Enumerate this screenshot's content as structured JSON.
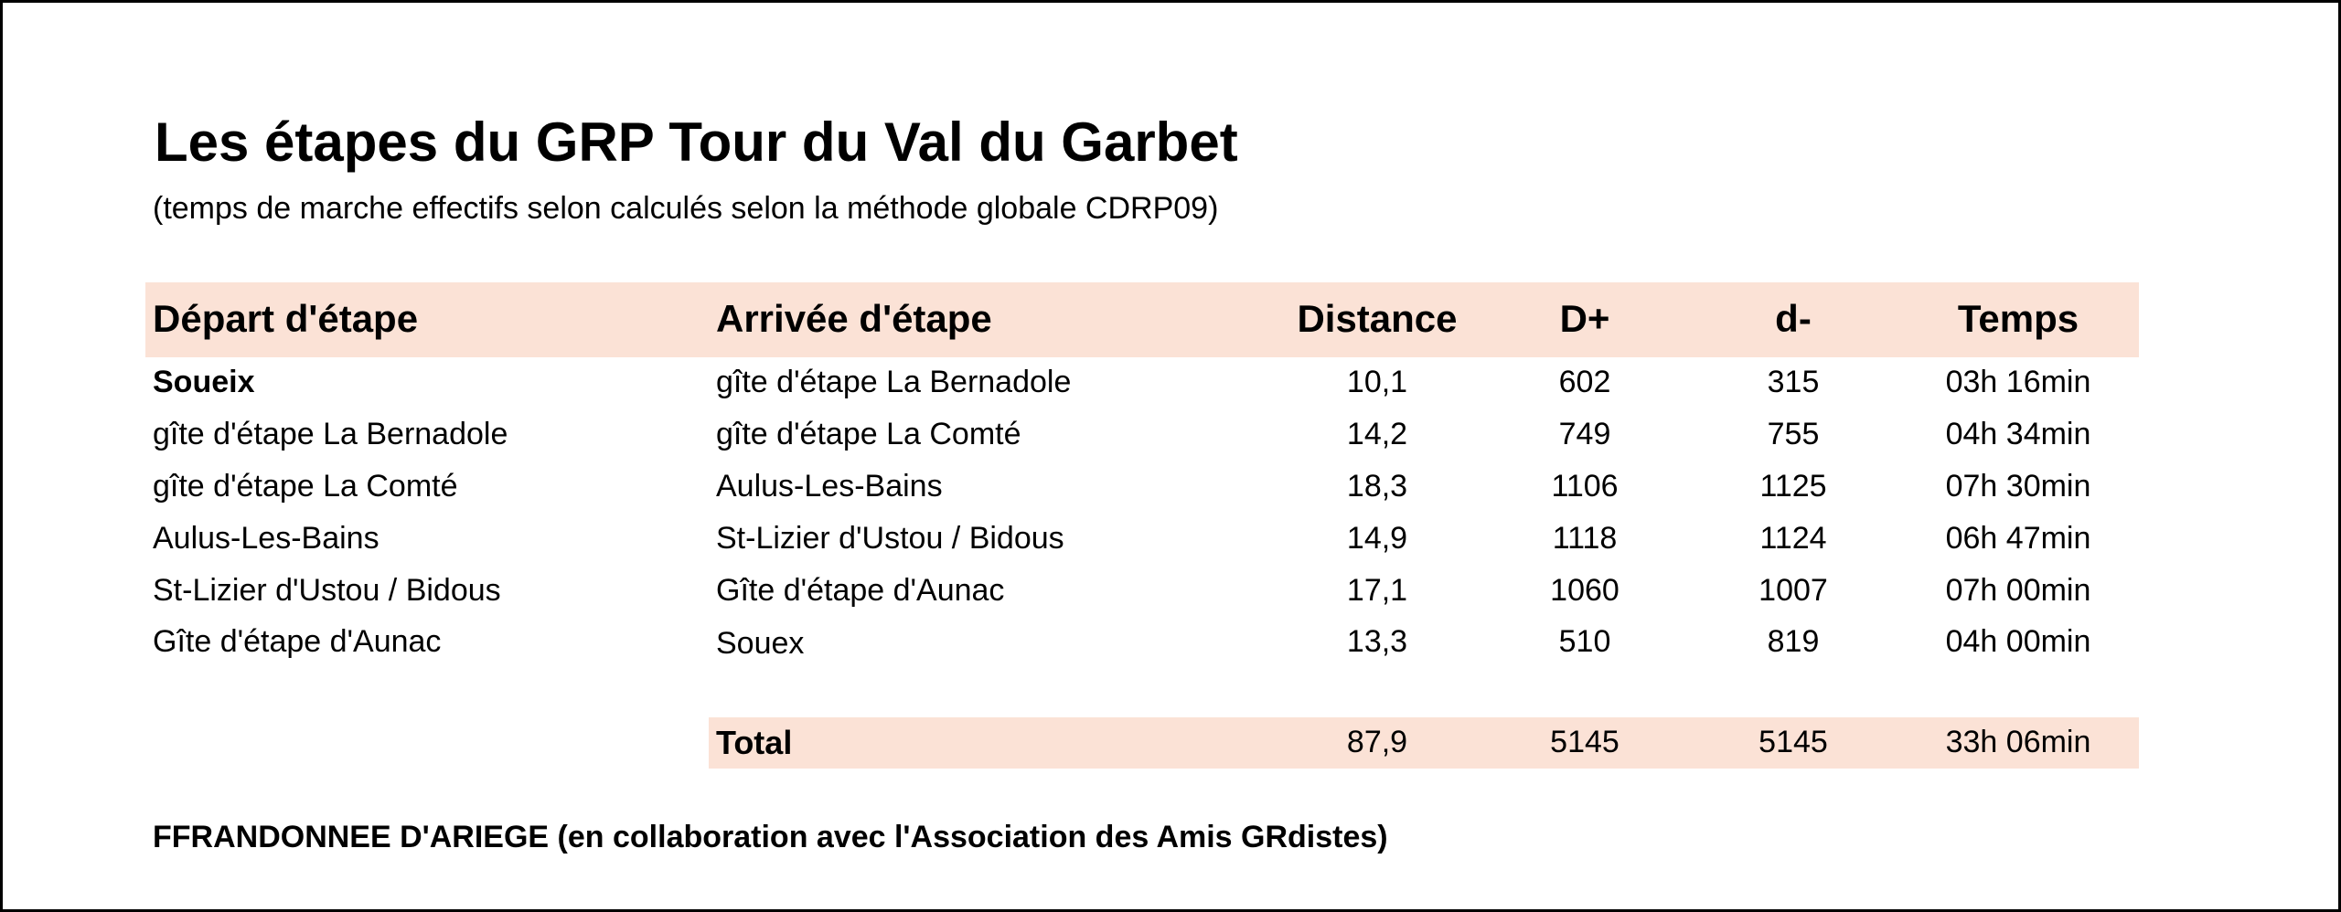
{
  "title": "Les étapes du GRP Tour du Val du Garbet",
  "subtitle": "(temps de marche effectifs selon calculés selon la méthode globale CDRP09)",
  "header": {
    "depart": "Départ d'étape",
    "arrivee": "Arrivée d'étape",
    "distance": "Distance",
    "dplus": "D+",
    "dminus": "d-",
    "temps": "Temps"
  },
  "rows": [
    {
      "depart": "Soueix",
      "arrivee": "gîte d'étape La Bernadole",
      "distance": "10,1",
      "dplus": "602",
      "dminus": "315",
      "temps": "03h 16min"
    },
    {
      "depart": "gîte d'étape La Bernadole",
      "arrivee": "gîte d'étape La Comté",
      "distance": "14,2",
      "dplus": "749",
      "dminus": "755",
      "temps": "04h 34min"
    },
    {
      "depart": "gîte d'étape La Comté",
      "arrivee": "Aulus-Les-Bains",
      "distance": "18,3",
      "dplus": "1106",
      "dminus": "1125",
      "temps": "07h 30min"
    },
    {
      "depart": "Aulus-Les-Bains",
      "arrivee": "St-Lizier d'Ustou / Bidous",
      "distance": "14,9",
      "dplus": "1118",
      "dminus": "1124",
      "temps": "06h 47min"
    },
    {
      "depart": "St-Lizier d'Ustou / Bidous",
      "arrivee": "Gîte d'étape d'Aunac",
      "distance": "17,1",
      "dplus": "1060",
      "dminus": "1007",
      "temps": "07h 00min"
    },
    {
      "depart": "Gîte d'étape d'Aunac",
      "arrivee": "Souex",
      "distance": "13,3",
      "dplus": "510",
      "dminus": "819",
      "temps": "04h 00min"
    }
  ],
  "total": {
    "label": "Total",
    "distance": "87,9",
    "dplus": "5145",
    "dminus": "5145",
    "temps": "33h 06min"
  },
  "footer": "FFRANDONNEE D'ARIEGE (en collaboration avec l'Association des Amis GRdistes)",
  "colors": {
    "band": "#fbe2d6",
    "border": "#000000"
  }
}
